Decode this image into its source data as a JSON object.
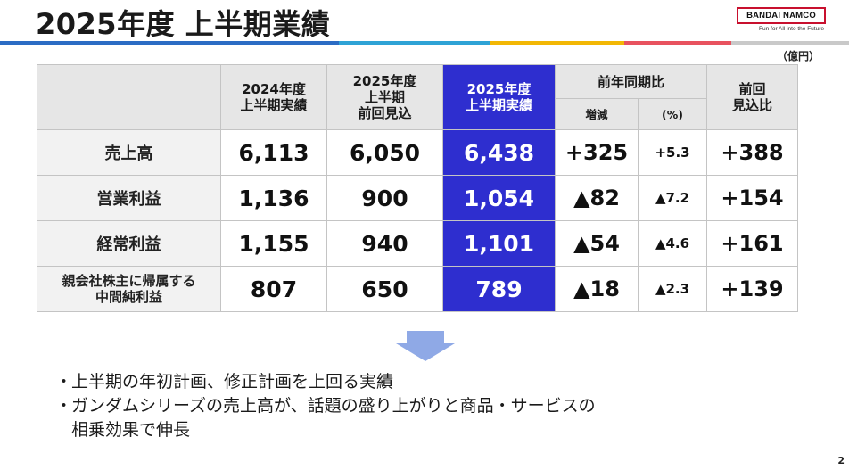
{
  "header": {
    "title": "2025年度 上半期業績",
    "stripe_colors": [
      "#2b6cc4",
      "#2ea3d6",
      "#f2b705",
      "#e8525f",
      "#c9c9c9"
    ]
  },
  "logo": {
    "name": "BANDAI NAMCO",
    "tagline": "Fun for All into the Future",
    "border_color": "#c8102e"
  },
  "unit_label": "（億円）",
  "table": {
    "col_headers": {
      "fy2024_h1_actual": "2024年度\n上半期実績",
      "fy2025_h1_prev_forecast": "2025年度\n上半期\n前回見込",
      "fy2025_h1_actual": "2025年度\n上半期実績",
      "yoy": "前年同期比",
      "yoy_change": "増減",
      "yoy_pct": "(%)",
      "vs_forecast": "前回\n見込比"
    },
    "highlight_color": "#2e2ecf",
    "rows": [
      {
        "label": "売上高",
        "fy2024": "6,113",
        "forecast": "6,050",
        "fy2025": "6,438",
        "change": "+325",
        "pct": "+5.3",
        "vs": "+388"
      },
      {
        "label": "営業利益",
        "fy2024": "1,136",
        "forecast": "900",
        "fy2025": "1,054",
        "change": "▲82",
        "pct": "▲7.2",
        "vs": "+154"
      },
      {
        "label": "経常利益",
        "fy2024": "1,155",
        "forecast": "940",
        "fy2025": "1,101",
        "change": "▲54",
        "pct": "▲4.6",
        "vs": "+161"
      },
      {
        "label": "親会社株主に帰属する\n中間純利益",
        "fy2024": "807",
        "forecast": "650",
        "fy2025": "789",
        "change": "▲18",
        "pct": "▲2.3",
        "vs": "+139"
      }
    ]
  },
  "summary": {
    "bullets": [
      "上半期の年初計画、修正計画を上回る実績",
      "ガンダムシリーズの売上高が、話題の盛り上がりと商品・サービスの\n相乗効果で伸長"
    ],
    "arrow_color": "#8fa9e6"
  },
  "page_number": "2"
}
